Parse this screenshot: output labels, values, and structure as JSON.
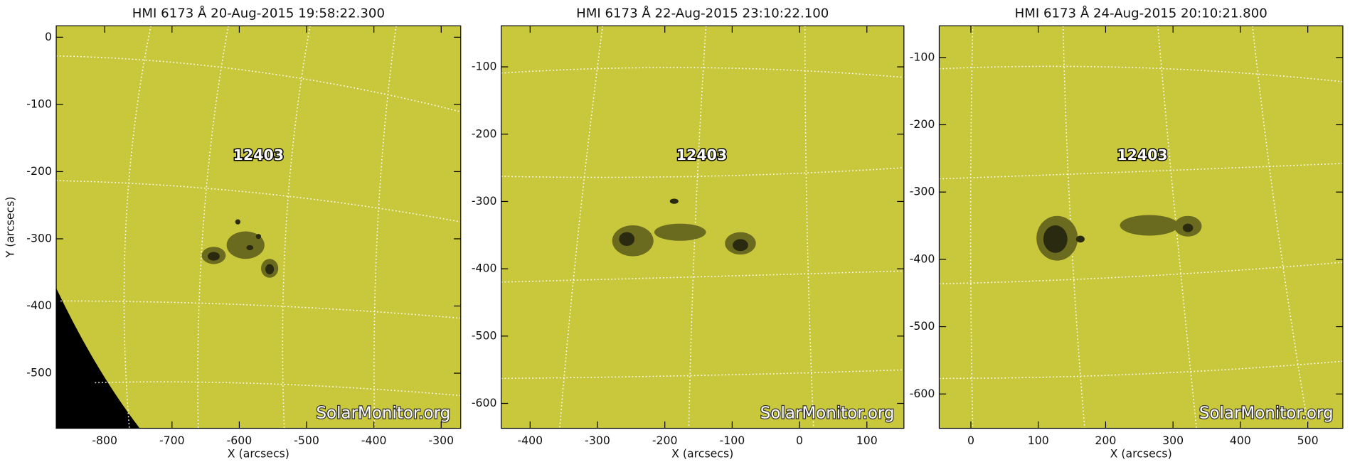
{
  "chart_data": [
    {
      "type": "image",
      "title": "HMI 6173 Å 20-Aug-2015 19:58:22.300",
      "xlabel": "X (arcsecs)",
      "ylabel": "Y (arcsecs)",
      "xlim": [
        -872,
        -271
      ],
      "ylim": [
        -582,
        17
      ],
      "xticks": [
        -800,
        -700,
        -600,
        -500,
        -400,
        -300
      ],
      "yticks": [
        0,
        -100,
        -200,
        -300,
        -400,
        -500
      ],
      "annotation": "12403",
      "watermark": "SolarMonitor.org"
    },
    {
      "type": "image",
      "title": "HMI 6173 Å 22-Aug-2015 23:10:22.100",
      "xlabel": "X (arcsecs)",
      "xlim": [
        -443,
        155
      ],
      "ylim": [
        -637,
        -39
      ],
      "xticks": [
        -400,
        -300,
        -200,
        -100,
        0,
        100
      ],
      "yticks": [
        -100,
        -200,
        -300,
        -400,
        -500,
        -600
      ],
      "annotation": "12403",
      "watermark": "SolarMonitor.org"
    },
    {
      "type": "image",
      "title": "HMI 6173 Å 24-Aug-2015 20:10:21.800",
      "xlabel": "X (arcsecs)",
      "xlim": [
        -47,
        552
      ],
      "ylim": [
        -651,
        -53
      ],
      "xticks": [
        0,
        100,
        200,
        300,
        400,
        500
      ],
      "yticks": [
        -100,
        -200,
        -300,
        -400,
        -500,
        -600
      ],
      "annotation": "12403",
      "watermark": "SolarMonitor.org"
    }
  ]
}
